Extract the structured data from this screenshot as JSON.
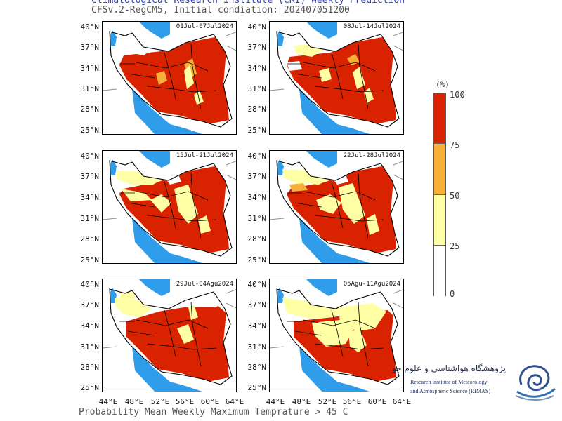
{
  "header": {
    "title": "Climatological Research Institute (CRI) Weekly Prediction",
    "subtitle": "CFSv.2-RegCM5, Initial condiation: 202407051200"
  },
  "footer": {
    "caption": "Probability Mean Weekly Maximum Temprature > 45 C"
  },
  "panels": [
    {
      "label": "01Jul-07Jul2024"
    },
    {
      "label": "08Jul-14Jul2024"
    },
    {
      "label": "15Jul-21Jul2024"
    },
    {
      "label": "22Jul-28Jul2024"
    },
    {
      "label": "29Jul-04Agu2024"
    },
    {
      "label": "05Agu-11Agu2024"
    }
  ],
  "axes": {
    "lat_ticks": [
      "40°N",
      "37°N",
      "34°N",
      "31°N",
      "28°N",
      "25°N"
    ],
    "lon_ticks": [
      "44°E",
      "48°E",
      "52°E",
      "56°E",
      "60°E",
      "64°E"
    ]
  },
  "legend": {
    "unit": "(%)",
    "ticks": [
      "100",
      "75",
      "50",
      "25",
      "0"
    ],
    "colors": [
      "#d92200",
      "#f7b13b",
      "#ffffa6",
      "#ffffff"
    ]
  },
  "logo": {
    "persian_name": "پژوهشگاه هواشناسی و علوم جو",
    "english_line1": "Research Institute of Meteorology",
    "english_line2": "and Atmospheric Science (RIMAS)"
  },
  "colors": {
    "water": "#2f9dea",
    "border": "#000000",
    "red": "#d92200",
    "orange": "#f7b13b",
    "yellow": "#ffffa6"
  }
}
